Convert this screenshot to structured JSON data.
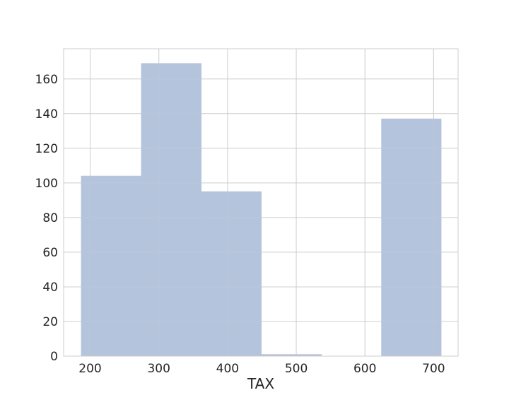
{
  "chart_data": {
    "type": "bar",
    "subtype": "histogram",
    "xlabel": "TAX",
    "ylabel": "",
    "title": "",
    "xlim": [
      161.4,
      735.6
    ],
    "ylim": [
      0,
      177.45
    ],
    "xticks": [
      200,
      300,
      400,
      500,
      600,
      700
    ],
    "yticks": [
      0,
      20,
      40,
      60,
      80,
      100,
      120,
      140,
      160
    ],
    "grid": true,
    "bin_edges": [
      187.0,
      274.4,
      361.8,
      449.2,
      536.6,
      624.0,
      711.0
    ],
    "values": [
      104,
      169,
      95,
      1,
      0,
      137
    ],
    "colors": {
      "bar": "#b5c4dd",
      "bar_edge": "#b5c4dd",
      "grid": "#cccccc",
      "frame": "#cccccc",
      "text": "#262626"
    }
  }
}
